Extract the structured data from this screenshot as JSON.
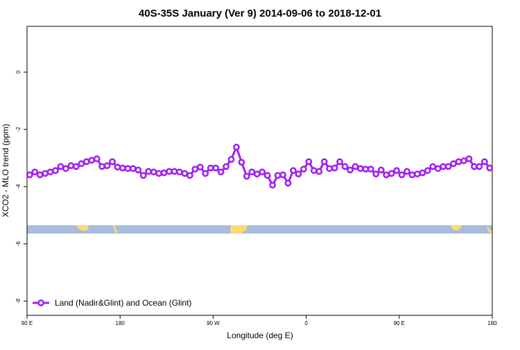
{
  "chart_data": {
    "type": "line",
    "title": "40S-35S January (Ver 9)   2014-09-06 to 2018-12-01",
    "xlabel": "Longitude (deg E)",
    "ylabel": "XCO2 - MLO trend (ppm)",
    "x": [
      92.5,
      97.5,
      102.5,
      107.5,
      112.5,
      117.5,
      122.5,
      127.5,
      132.5,
      137.5,
      142.5,
      147.5,
      152.5,
      157.5,
      162.5,
      167.5,
      172.5,
      177.5,
      182.5,
      187.5,
      192.5,
      197.5,
      202.5,
      207.5,
      212.5,
      217.5,
      222.5,
      227.5,
      232.5,
      237.5,
      242.5,
      247.5,
      252.5,
      257.5,
      262.5,
      267.5,
      272.5,
      277.5,
      282.5,
      287.5,
      292.5,
      297.5,
      302.5,
      307.5,
      312.5,
      317.5,
      322.5,
      327.5,
      332.5,
      337.5,
      342.5,
      347.5,
      352.5,
      357.5,
      362.5,
      367.5,
      372.5,
      377.5,
      382.5,
      387.5,
      392.5,
      397.5,
      402.5,
      407.5,
      412.5,
      417.5,
      422.5,
      427.5,
      432.5,
      437.5,
      442.5,
      447.5,
      452.5,
      457.5,
      462.5,
      467.5,
      472.5,
      477.5,
      482.5,
      487.5,
      492.5,
      497.5,
      502.5,
      507.5,
      512.5,
      517.5,
      522.5,
      527.5,
      532.5,
      537.5
    ],
    "series": [
      {
        "name": "Land (Nadir&Glint) and Ocean (Glint)",
        "color": "#a020f0",
        "values": [
          -3.59,
          -3.49,
          -3.59,
          -3.54,
          -3.49,
          -3.44,
          -3.3,
          -3.37,
          -3.27,
          -3.3,
          -3.2,
          -3.13,
          -3.08,
          -3.03,
          -3.3,
          -3.27,
          -3.13,
          -3.32,
          -3.35,
          -3.37,
          -3.37,
          -3.42,
          -3.61,
          -3.47,
          -3.49,
          -3.54,
          -3.52,
          -3.47,
          -3.47,
          -3.49,
          -3.54,
          -3.61,
          -3.39,
          -3.32,
          -3.54,
          -3.35,
          -3.35,
          -3.49,
          -3.3,
          -3.05,
          -2.62,
          -3.15,
          -3.64,
          -3.49,
          -3.56,
          -3.49,
          -3.61,
          -3.95,
          -3.61,
          -3.59,
          -3.88,
          -3.44,
          -3.56,
          -3.39,
          -3.13,
          -3.44,
          -3.47,
          -3.13,
          -3.37,
          -3.35,
          -3.13,
          -3.3,
          -3.42,
          -3.3,
          -3.37,
          -3.39,
          -3.39,
          -3.56,
          -3.42,
          -3.59,
          -3.54,
          -3.44,
          -3.59,
          -3.47,
          -3.59,
          -3.56,
          -3.52,
          -3.44,
          -3.3,
          -3.37,
          -3.3,
          -3.3,
          -3.2,
          -3.13,
          -3.1,
          -3.03,
          -3.3,
          -3.3,
          -3.13,
          -3.35
        ]
      }
    ],
    "xlim": [
      90,
      540
    ],
    "xticks": [
      {
        "value": 90,
        "label": "90 E"
      },
      180,
      {
        "value": 270,
        "label": "90 W"
      },
      {
        "value": 360,
        "label": "0"
      },
      {
        "value": 450,
        "label": "90 E"
      },
      {
        "value": 540,
        "label": "180"
      }
    ],
    "ylim": [
      -8.5,
      1.6
    ],
    "yticks": [
      0,
      -2,
      -4,
      -6,
      -8
    ],
    "legend": "bottomleft"
  }
}
